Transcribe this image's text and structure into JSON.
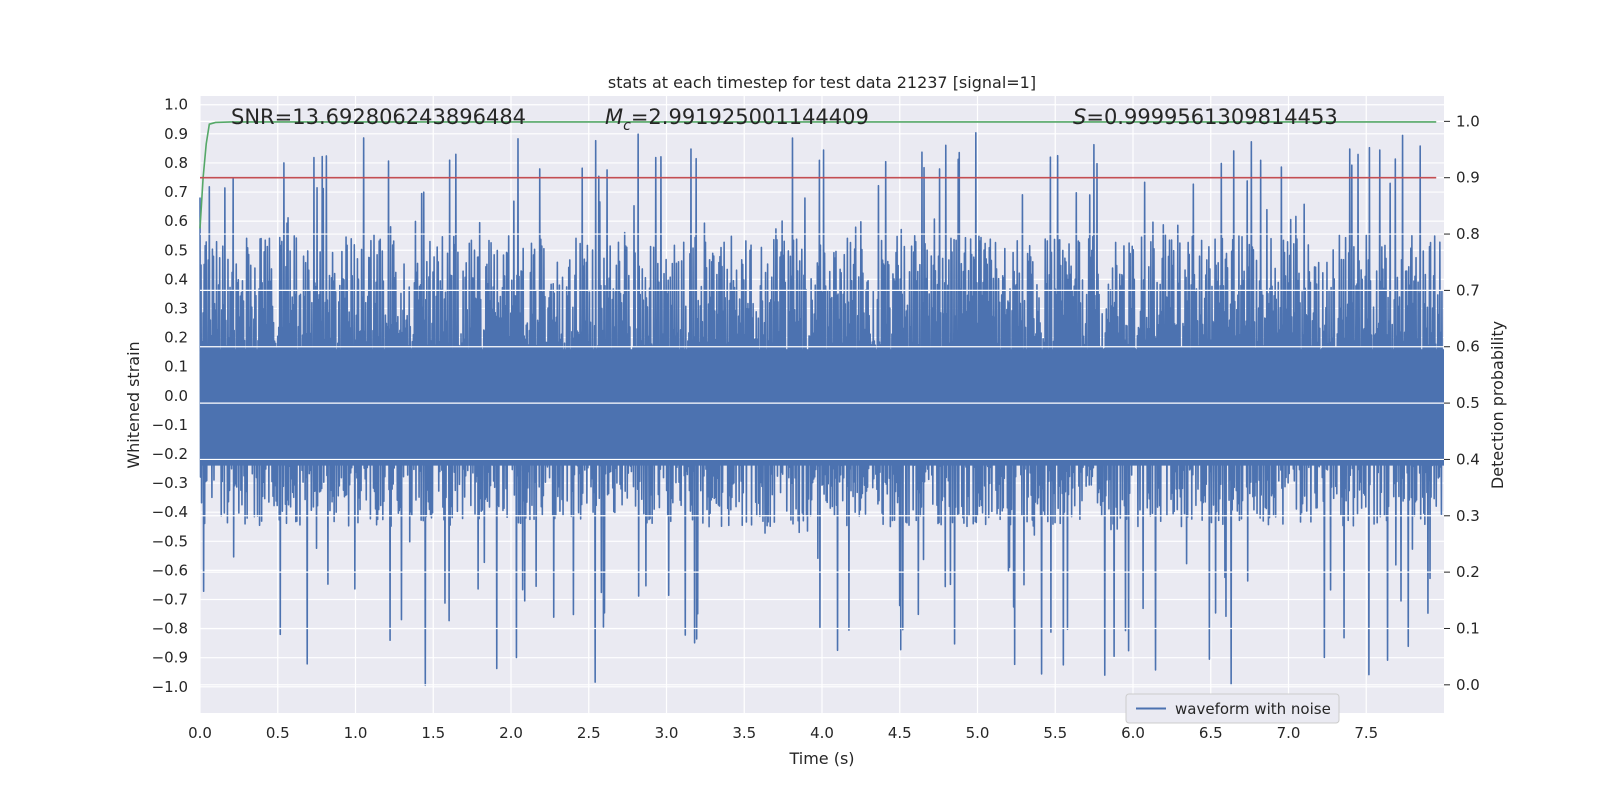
{
  "chart_data": {
    "type": "line",
    "title": "stats at each timestep for test data 21237 [signal=1]",
    "xlabel": "Time (s)",
    "ylabel_left": "Whitened strain",
    "ylabel_right": "Detection probability",
    "xlim": [
      0.0,
      8.0
    ],
    "ylim_left": [
      -1.09,
      1.03
    ],
    "ylim_right": [
      -0.05,
      1.045
    ],
    "x_ticks": [
      "0.0",
      "0.5",
      "1.0",
      "1.5",
      "2.0",
      "2.5",
      "3.0",
      "3.5",
      "4.0",
      "4.5",
      "5.0",
      "5.5",
      "6.0",
      "6.5",
      "7.0",
      "7.5"
    ],
    "y_ticks_left": [
      "1.0",
      "0.9",
      "0.8",
      "0.7",
      "0.6",
      "0.5",
      "0.4",
      "0.3",
      "0.2",
      "0.1",
      "0.0",
      "−0.1",
      "−0.2",
      "−0.3",
      "−0.4",
      "−0.5",
      "−0.6",
      "−0.7",
      "−0.8",
      "−0.9",
      "−1.0"
    ],
    "y_ticks_right": [
      "1.0",
      "0.9",
      "0.8",
      "0.7",
      "0.6",
      "0.5",
      "0.4",
      "0.3",
      "0.2",
      "0.1",
      "0.0"
    ],
    "annotations": {
      "snr": "SNR=13.692806243896484",
      "mc_symbol": "M",
      "mc_subscript": "c",
      "mc_value": "=2.991925001144409",
      "s_symbol": "S",
      "s_value": "=0.9999561309814453"
    },
    "grid": true,
    "legend": {
      "position": "lower right",
      "entries": [
        "waveform with noise"
      ]
    },
    "series": [
      {
        "name": "waveform with noise",
        "axis": "left",
        "color": "#4c72b0",
        "x_range": [
          0.0,
          7.99
        ],
        "envelope_max": 0.91,
        "envelope_min": -1.0,
        "typical_upper": 0.55,
        "typical_lower": -0.45
      },
      {
        "axis": "right",
        "color": "#55a868",
        "x": [
          0.0,
          0.02,
          0.04,
          0.06,
          0.1,
          0.2,
          0.5,
          1.0,
          2.0,
          3.0,
          4.0,
          5.0,
          6.0,
          7.0,
          7.95
        ],
        "y": [
          0.81,
          0.9,
          0.96,
          0.995,
          0.998,
          0.999,
          0.999,
          0.999,
          0.999,
          0.999,
          0.999,
          0.999,
          0.999,
          0.999,
          0.999
        ]
      },
      {
        "axis": "right",
        "color": "#c44e52",
        "x": [
          0.0,
          7.95
        ],
        "y": [
          0.9,
          0.9
        ]
      }
    ]
  }
}
